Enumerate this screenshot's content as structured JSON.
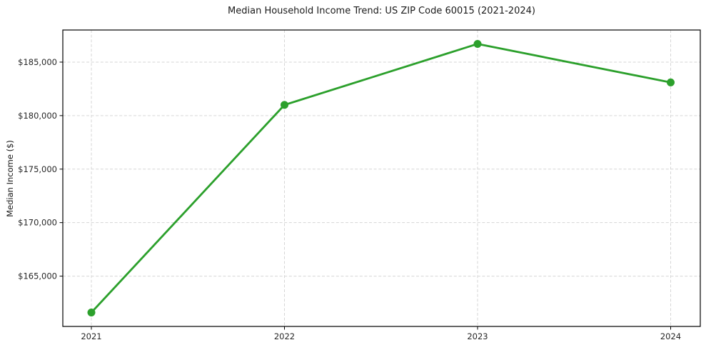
{
  "chart_data": {
    "type": "line",
    "title": "Median Household Income Trend: US ZIP Code 60015 (2021-2024)",
    "xlabel": "",
    "ylabel": "Median Income ($)",
    "x": [
      "2021",
      "2022",
      "2023",
      "2024"
    ],
    "series": [
      {
        "name": "Median Household Income",
        "values": [
          161600,
          181000,
          186700,
          183100
        ]
      }
    ],
    "ylim": [
      160300,
      188000
    ],
    "yticks": [
      {
        "value": 165000,
        "label": "$165,000"
      },
      {
        "value": 170000,
        "label": "$170,000"
      },
      {
        "value": 175000,
        "label": "$175,000"
      },
      {
        "value": 180000,
        "label": "$180,000"
      },
      {
        "value": 185000,
        "label": "$185,000"
      }
    ],
    "legend": "none",
    "grid": {
      "show": true,
      "style": "dashed",
      "color": "#d6d6d6"
    },
    "colors": {
      "line": "#2ca02c",
      "marker": "#2ca02c",
      "axis_border": "#000000",
      "tick_text": "#262626",
      "title_text": "#1a1a1a",
      "background": "#ffffff"
    }
  }
}
